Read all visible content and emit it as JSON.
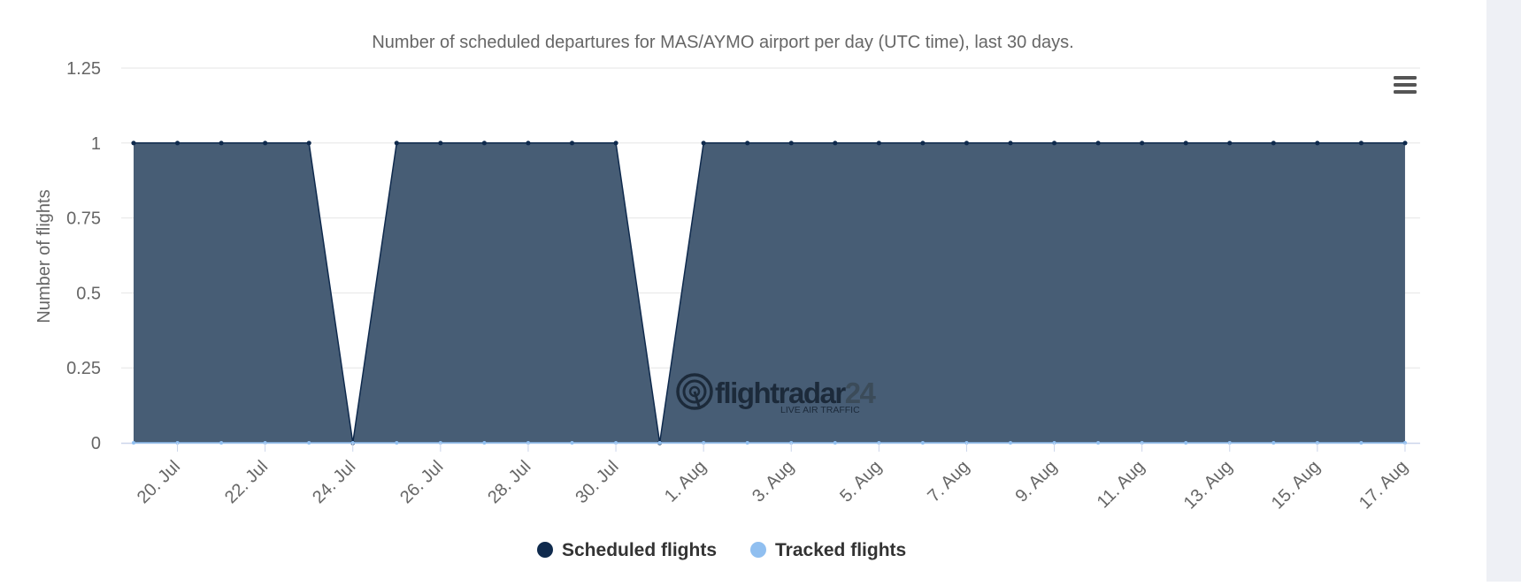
{
  "chart_data": {
    "type": "area",
    "title": "Number of scheduled departures for MAS/AYMO airport per day (UTC time), last 30 days.",
    "ylabel": "Number of flights",
    "xlabel": "",
    "ylim": [
      0,
      1.25
    ],
    "y_ticks": [
      "0",
      "0.25",
      "0.5",
      "0.75",
      "1",
      "1.25"
    ],
    "y_tick_values": [
      0,
      0.25,
      0.5,
      0.75,
      1,
      1.25
    ],
    "x_tick_labels": [
      "20. Jul",
      "22. Jul",
      "24. Jul",
      "26. Jul",
      "28. Jul",
      "30. Jul",
      "1. Aug",
      "3. Aug",
      "5. Aug",
      "7. Aug",
      "9. Aug",
      "11. Aug",
      "13. Aug",
      "15. Aug",
      "17. Aug"
    ],
    "x": [
      "19 Jul",
      "20 Jul",
      "21 Jul",
      "22 Jul",
      "23 Jul",
      "24 Jul",
      "25 Jul",
      "26 Jul",
      "27 Jul",
      "28 Jul",
      "29 Jul",
      "30 Jul",
      "31 Jul",
      "1 Aug",
      "2 Aug",
      "3 Aug",
      "4 Aug",
      "5 Aug",
      "6 Aug",
      "7 Aug",
      "8 Aug",
      "9 Aug",
      "10 Aug",
      "11 Aug",
      "12 Aug",
      "13 Aug",
      "14 Aug",
      "15 Aug",
      "16 Aug",
      "17 Aug"
    ],
    "series": [
      {
        "name": "Scheduled flights",
        "color": "#0f2a4d",
        "fill": "#475d75",
        "values": [
          1,
          1,
          1,
          1,
          1,
          0,
          1,
          1,
          1,
          1,
          1,
          1,
          0,
          1,
          1,
          1,
          1,
          1,
          1,
          1,
          1,
          1,
          1,
          1,
          1,
          1,
          1,
          1,
          1,
          1
        ]
      },
      {
        "name": "Tracked flights",
        "color": "#90bff0",
        "values": [
          0,
          0,
          0,
          0,
          0,
          0,
          0,
          0,
          0,
          0,
          0,
          0,
          0,
          0,
          0,
          0,
          0,
          0,
          0,
          0,
          0,
          0,
          0,
          0,
          0,
          0,
          0,
          0,
          0,
          0
        ]
      }
    ],
    "grid": true,
    "legend_position": "bottom-center"
  },
  "watermark": {
    "brand": "flightradar24",
    "brand_main": "flightradar",
    "brand_num": "24",
    "tagline": "LIVE AIR TRAFFIC"
  },
  "menu_icon": "hamburger-menu-icon"
}
